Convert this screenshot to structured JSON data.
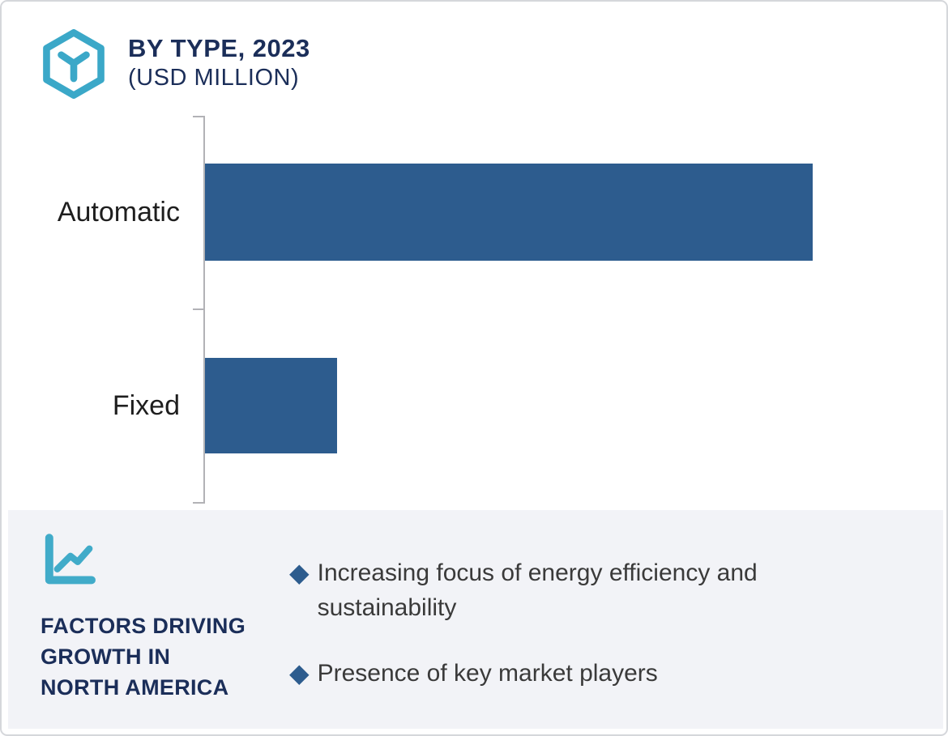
{
  "header": {
    "title": "BY TYPE, 2023",
    "subtitle": "(USD MILLION)"
  },
  "chart_data": {
    "type": "bar",
    "orientation": "horizontal",
    "title": "BY TYPE, 2023",
    "subtitle": "(USD MILLION)",
    "ylabel": "",
    "xlabel": "",
    "categories": [
      "Automatic",
      "Fixed"
    ],
    "relative_values": [
      1.0,
      0.217
    ],
    "value_labels_shown": false,
    "value_axis_shown": false,
    "grid": false,
    "legend": "none",
    "bar_color": "#2d5c8e"
  },
  "factors": {
    "heading_lines": [
      "FACTORS DRIVING",
      "GROWTH IN",
      "NORTH AMERICA"
    ],
    "bullets": [
      "Increasing focus of energy efficiency and sustainability",
      "Presence of key market players"
    ],
    "diamond_glyph": "◆"
  },
  "icons": {
    "logo": "hexagon-cube-logo",
    "panel": "line-chart-icon"
  },
  "colors": {
    "bar": "#2d5c8e",
    "accent_teal": "#3ba8c8",
    "navy_text": "#1b2e59",
    "panel_background": "#f2f3f7",
    "axis_gray": "#b2b2b6",
    "frame_border": "#d5d7db",
    "body_text": "#3a3a3a"
  }
}
